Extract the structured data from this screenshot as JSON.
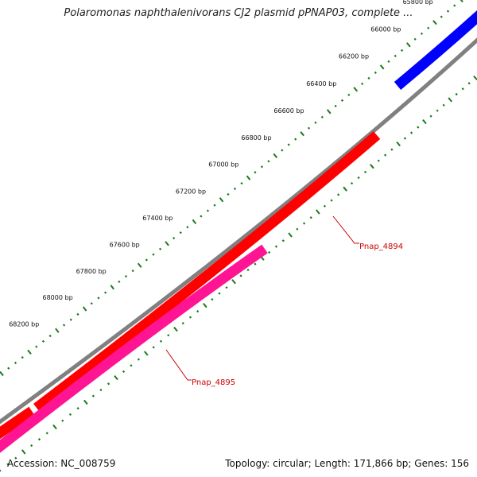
{
  "title": "Polaromonas naphthalenivorans CJ2 plasmid pPNAP03, complete ...",
  "footer": {
    "accession_label": "Accession:",
    "accession": "NC_008759",
    "topology_label": "Topology:",
    "topology": "circular",
    "length_label": "Length:",
    "length": "171,866 bp",
    "genes_label": "Genes:",
    "genes": "156"
  },
  "ticks": [
    {
      "pos": 65800,
      "label": "65800 bp"
    },
    {
      "pos": 66000,
      "label": "66000 bp"
    },
    {
      "pos": 66200,
      "label": "66200 bp"
    },
    {
      "pos": 66400,
      "label": "66400 bp"
    },
    {
      "pos": 66600,
      "label": "66600 bp"
    },
    {
      "pos": 66800,
      "label": "66800 bp"
    },
    {
      "pos": 67000,
      "label": "67000 bp"
    },
    {
      "pos": 67200,
      "label": "67200 bp"
    },
    {
      "pos": 67400,
      "label": "67400 bp"
    },
    {
      "pos": 67600,
      "label": "67600 bp"
    },
    {
      "pos": 67800,
      "label": "67800 bp"
    },
    {
      "pos": 68000,
      "label": "68000 bp"
    },
    {
      "pos": 68200,
      "label": "68200 bp"
    }
  ],
  "genes_list": [
    {
      "name": "Pnap_4894",
      "color": "#ff0000"
    },
    {
      "name": "Pnap_4895",
      "color": "#ff1493"
    }
  ],
  "colors": {
    "backbone": "#808080",
    "forward_blue": "#0000ff",
    "gene_red": "#ff0000",
    "gene_pink": "#ff1493",
    "tick_green": "#1a7a1a",
    "label_red": "#cc0000"
  }
}
